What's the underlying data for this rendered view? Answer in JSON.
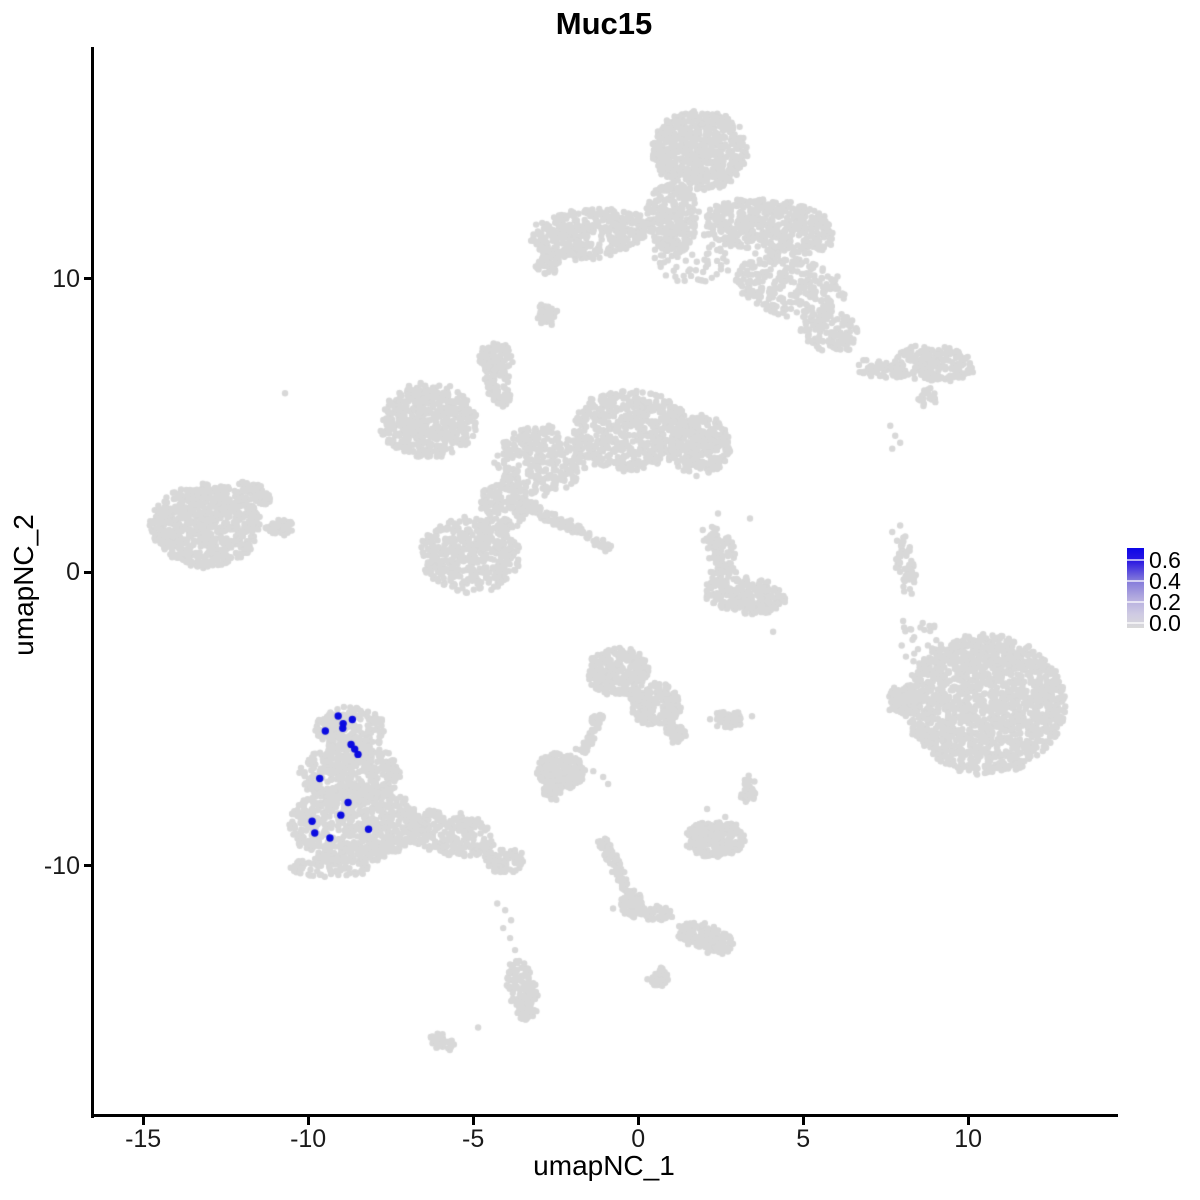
{
  "chart_data": {
    "type": "scatter",
    "title": "Muc15",
    "xlabel": "umapNC_1",
    "ylabel": "umapNC_2",
    "xlim": [
      -16.52,
      14.45
    ],
    "ylim": [
      -18.5,
      17.9
    ],
    "x_ticks": [
      -15,
      -10,
      -5,
      0,
      5,
      10
    ],
    "y_ticks": [
      10,
      0,
      -10
    ],
    "grid": false,
    "legend_position": "right",
    "colors": {
      "low": "#d8d8d8",
      "high": "#0b0be0",
      "axis": "#000000",
      "tick_label": "#1a1a1a"
    },
    "colorbar": {
      "label_values": [
        0.6,
        0.4,
        0.2,
        0.0
      ],
      "bar_top_value": 0.72,
      "bar_bottom_value": -0.05,
      "gradient_stops": [
        {
          "pos": 0,
          "color": "#0d06e8"
        },
        {
          "pos": 16,
          "color": "#2a18e2"
        },
        {
          "pos": 40,
          "color": "#8177da"
        },
        {
          "pos": 63,
          "color": "#b4acdf"
        },
        {
          "pos": 83,
          "color": "#cfcbe3"
        },
        {
          "pos": 100,
          "color": "#d9d9d9"
        }
      ]
    },
    "highlighted_points": [
      {
        "x": -9.09,
        "y": -4.9
      },
      {
        "x": -8.66,
        "y": -5.02
      },
      {
        "x": -8.94,
        "y": -5.16
      },
      {
        "x": -8.95,
        "y": -5.32
      },
      {
        "x": -9.48,
        "y": -5.41
      },
      {
        "x": -8.7,
        "y": -5.87
      },
      {
        "x": -8.59,
        "y": -6.03
      },
      {
        "x": -8.49,
        "y": -6.21
      },
      {
        "x": -9.65,
        "y": -7.03
      },
      {
        "x": -8.79,
        "y": -7.85
      },
      {
        "x": -9.01,
        "y": -8.28
      },
      {
        "x": -9.88,
        "y": -8.49
      },
      {
        "x": -8.17,
        "y": -8.76
      },
      {
        "x": -9.8,
        "y": -8.89
      },
      {
        "x": -9.34,
        "y": -9.06
      }
    ],
    "background_clusters": [
      {
        "x": 1.88,
        "y": 14.38,
        "sx": 1.45,
        "sy": 1.36,
        "rot": 0,
        "n": 620
      },
      {
        "x": 1.03,
        "y": 12.1,
        "sx": 0.78,
        "sy": 1.19,
        "rot": 0,
        "n": 260
      },
      {
        "x": 4.0,
        "y": 11.76,
        "sx": 1.97,
        "sy": 0.95,
        "rot": -8,
        "n": 470
      },
      {
        "x": -1.45,
        "y": 11.53,
        "sx": 1.82,
        "sy": 0.85,
        "rot": 5,
        "n": 420
      },
      {
        "x": -2.73,
        "y": 10.51,
        "sx": 0.36,
        "sy": 0.41,
        "rot": 0,
        "n": 50
      },
      {
        "x": 4.61,
        "y": 9.73,
        "sx": 1.67,
        "sy": 1.02,
        "rot": -15,
        "n": 260
      },
      {
        "x": -2.76,
        "y": 8.82,
        "sx": 0.3,
        "sy": 0.41,
        "rot": 0,
        "n": 40
      },
      {
        "x": 1.7,
        "y": 10.75,
        "sx": 1.3,
        "sy": 0.9,
        "rot": 0,
        "n": 80
      },
      {
        "x": 5.82,
        "y": 8.21,
        "sx": 0.91,
        "sy": 0.68,
        "rot": -20,
        "n": 120
      },
      {
        "x": 9.0,
        "y": 7.12,
        "sx": 1.21,
        "sy": 0.61,
        "rot": -5,
        "n": 180
      },
      {
        "x": 7.33,
        "y": 6.92,
        "sx": 0.76,
        "sy": 0.27,
        "rot": -10,
        "n": 60
      },
      {
        "x": 8.79,
        "y": 5.97,
        "sx": 0.33,
        "sy": 0.24,
        "rot": 40,
        "n": 25
      },
      {
        "x": -13.12,
        "y": 1.6,
        "sx": 1.67,
        "sy": 1.42,
        "rot": 0,
        "n": 700
      },
      {
        "x": -11.61,
        "y": 2.71,
        "sx": 0.55,
        "sy": 0.25,
        "rot": -35,
        "n": 75
      },
      {
        "x": -10.85,
        "y": 1.53,
        "sx": 0.42,
        "sy": 0.27,
        "rot": 0,
        "n": 50
      },
      {
        "x": -6.36,
        "y": 5.15,
        "sx": 1.45,
        "sy": 1.29,
        "rot": 0,
        "n": 520
      },
      {
        "x": -4.27,
        "y": 6.51,
        "sx": 0.36,
        "sy": 0.95,
        "rot": 15,
        "n": 95
      },
      {
        "x": -4.3,
        "y": 7.32,
        "sx": 0.52,
        "sy": 0.47,
        "rot": 0,
        "n": 85
      },
      {
        "x": -2.97,
        "y": 3.8,
        "sx": 1.36,
        "sy": 1.19,
        "rot": 0,
        "n": 300
      },
      {
        "x": -0.24,
        "y": 4.82,
        "sx": 1.82,
        "sy": 1.36,
        "rot": 0,
        "n": 580
      },
      {
        "x": 1.88,
        "y": 4.31,
        "sx": 0.91,
        "sy": 1.02,
        "rot": 0,
        "n": 290
      },
      {
        "x": -5.09,
        "y": 0.58,
        "sx": 1.52,
        "sy": 1.29,
        "rot": 0,
        "n": 470
      },
      {
        "x": -4.03,
        "y": 2.27,
        "sx": 0.76,
        "sy": 0.85,
        "rot": 0,
        "n": 140
      },
      {
        "x": 3.24,
        "y": -0.78,
        "sx": 1.27,
        "sy": 0.61,
        "rot": -8,
        "n": 230
      },
      {
        "x": 2.55,
        "y": 0.41,
        "sx": 0.45,
        "sy": 0.85,
        "rot": 0,
        "n": 75
      },
      {
        "x": 2.18,
        "y": 1.26,
        "sx": 0.3,
        "sy": 0.3,
        "rot": 0,
        "n": 25
      },
      {
        "x": 8.09,
        "y": 0.24,
        "sx": 0.27,
        "sy": 1.08,
        "rot": 8,
        "n": 55
      },
      {
        "x": 10.52,
        "y": -4.51,
        "sx": 2.42,
        "sy": 2.37,
        "rot": -15,
        "n": 1550
      },
      {
        "x": 8.09,
        "y": -4.34,
        "sx": 0.55,
        "sy": 0.51,
        "rot": 0,
        "n": 95
      },
      {
        "x": 8.55,
        "y": -2.3,
        "sx": 0.6,
        "sy": 0.85,
        "rot": 0,
        "n": 22
      },
      {
        "x": -8.73,
        "y": -5.35,
        "sx": 1.06,
        "sy": 0.75,
        "rot": 0,
        "n": 240
      },
      {
        "x": -8.73,
        "y": -6.88,
        "sx": 1.52,
        "sy": 1.02,
        "rot": 0,
        "n": 400
      },
      {
        "x": -8.58,
        "y": -8.57,
        "sx": 1.97,
        "sy": 1.29,
        "rot": 0,
        "n": 680
      },
      {
        "x": -5.7,
        "y": -8.91,
        "sx": 1.36,
        "sy": 0.75,
        "rot": -12,
        "n": 240
      },
      {
        "x": -4.03,
        "y": -9.83,
        "sx": 0.61,
        "sy": 0.41,
        "rot": -15,
        "n": 75
      },
      {
        "x": -9.33,
        "y": -10.03,
        "sx": 1.21,
        "sy": 0.34,
        "rot": 0,
        "n": 95
      },
      {
        "x": -2.36,
        "y": -6.78,
        "sx": 0.73,
        "sy": 0.61,
        "rot": 0,
        "n": 210
      },
      {
        "x": -2.61,
        "y": -7.49,
        "sx": 0.24,
        "sy": 0.27,
        "rot": 0,
        "n": 35
      },
      {
        "x": -0.61,
        "y": -3.39,
        "sx": 0.91,
        "sy": 0.85,
        "rot": 0,
        "n": 270
      },
      {
        "x": 0.52,
        "y": -4.51,
        "sx": 0.76,
        "sy": 0.75,
        "rot": -40,
        "n": 190
      },
      {
        "x": 1.15,
        "y": -5.46,
        "sx": 0.3,
        "sy": 0.34,
        "rot": 0,
        "n": 55
      },
      {
        "x": 2.73,
        "y": -5.01,
        "sx": 0.48,
        "sy": 0.31,
        "rot": 0,
        "n": 55
      },
      {
        "x": 3.33,
        "y": -7.39,
        "sx": 0.24,
        "sy": 0.44,
        "rot": 0,
        "n": 38
      },
      {
        "x": 2.33,
        "y": -9.08,
        "sx": 0.91,
        "sy": 0.61,
        "rot": 0,
        "n": 240
      },
      {
        "x": -0.18,
        "y": -11.29,
        "sx": 0.36,
        "sy": 0.47,
        "rot": 0,
        "n": 65
      },
      {
        "x": 0.58,
        "y": -11.62,
        "sx": 0.48,
        "sy": 0.27,
        "rot": 0,
        "n": 48
      },
      {
        "x": 1.88,
        "y": -12.4,
        "sx": 0.76,
        "sy": 0.41,
        "rot": -18,
        "n": 105
      },
      {
        "x": 2.42,
        "y": -12.64,
        "sx": 0.45,
        "sy": 0.41,
        "rot": 0,
        "n": 60
      },
      {
        "x": 0.61,
        "y": -13.83,
        "sx": 0.3,
        "sy": 0.31,
        "rot": 0,
        "n": 38
      },
      {
        "x": -3.52,
        "y": -14.27,
        "sx": 0.42,
        "sy": 1.02,
        "rot": 10,
        "n": 140
      },
      {
        "x": -5.97,
        "y": -16.0,
        "sx": 0.39,
        "sy": 0.24,
        "rot": -25,
        "n": 45
      }
    ],
    "streaks": [
      {
        "x1": -3.58,
        "y1": 2.44,
        "x2": -0.85,
        "y2": 0.82,
        "w": 0.28,
        "n": 115
      },
      {
        "x1": -1.15,
        "y1": -4.85,
        "x2": -1.76,
        "y2": -6.2,
        "w": 0.25,
        "n": 50
      },
      {
        "x1": -1.09,
        "y1": -9.08,
        "x2": 0.06,
        "y2": -11.69,
        "w": 0.27,
        "n": 115
      }
    ],
    "isolated_points": [
      {
        "x": -10.7,
        "y": 6.1
      },
      {
        "x": 5.15,
        "y": 8.04
      },
      {
        "x": -2.88,
        "y": 10.75
      },
      {
        "x": -2.52,
        "y": 10.31
      },
      {
        "x": 7.64,
        "y": 4.99
      },
      {
        "x": 7.79,
        "y": 4.65
      },
      {
        "x": 7.94,
        "y": 4.41
      },
      {
        "x": 7.7,
        "y": 4.21
      },
      {
        "x": 8.03,
        "y": -1.66
      },
      {
        "x": 7.94,
        "y": 1.59
      },
      {
        "x": 7.7,
        "y": 1.37
      },
      {
        "x": 4.09,
        "y": -2.03
      },
      {
        "x": 2.42,
        "y": 2.0
      },
      {
        "x": 3.39,
        "y": 1.83
      },
      {
        "x": 2.18,
        "y": -5.01
      },
      {
        "x": 3.45,
        "y": -4.91
      },
      {
        "x": -1.36,
        "y": -6.78
      },
      {
        "x": -1.06,
        "y": -6.98
      },
      {
        "x": -0.91,
        "y": -7.22
      },
      {
        "x": 2.09,
        "y": -8.07
      },
      {
        "x": 2.64,
        "y": -8.34
      },
      {
        "x": 2.97,
        "y": -8.61
      },
      {
        "x": -0.76,
        "y": -11.46
      },
      {
        "x": -4.27,
        "y": -11.29
      },
      {
        "x": -4.03,
        "y": -11.52
      },
      {
        "x": -3.85,
        "y": -11.86
      },
      {
        "x": -4.09,
        "y": -12.13
      },
      {
        "x": -3.88,
        "y": -12.47
      },
      {
        "x": -3.73,
        "y": -12.88
      },
      {
        "x": -4.85,
        "y": -15.52
      }
    ]
  }
}
